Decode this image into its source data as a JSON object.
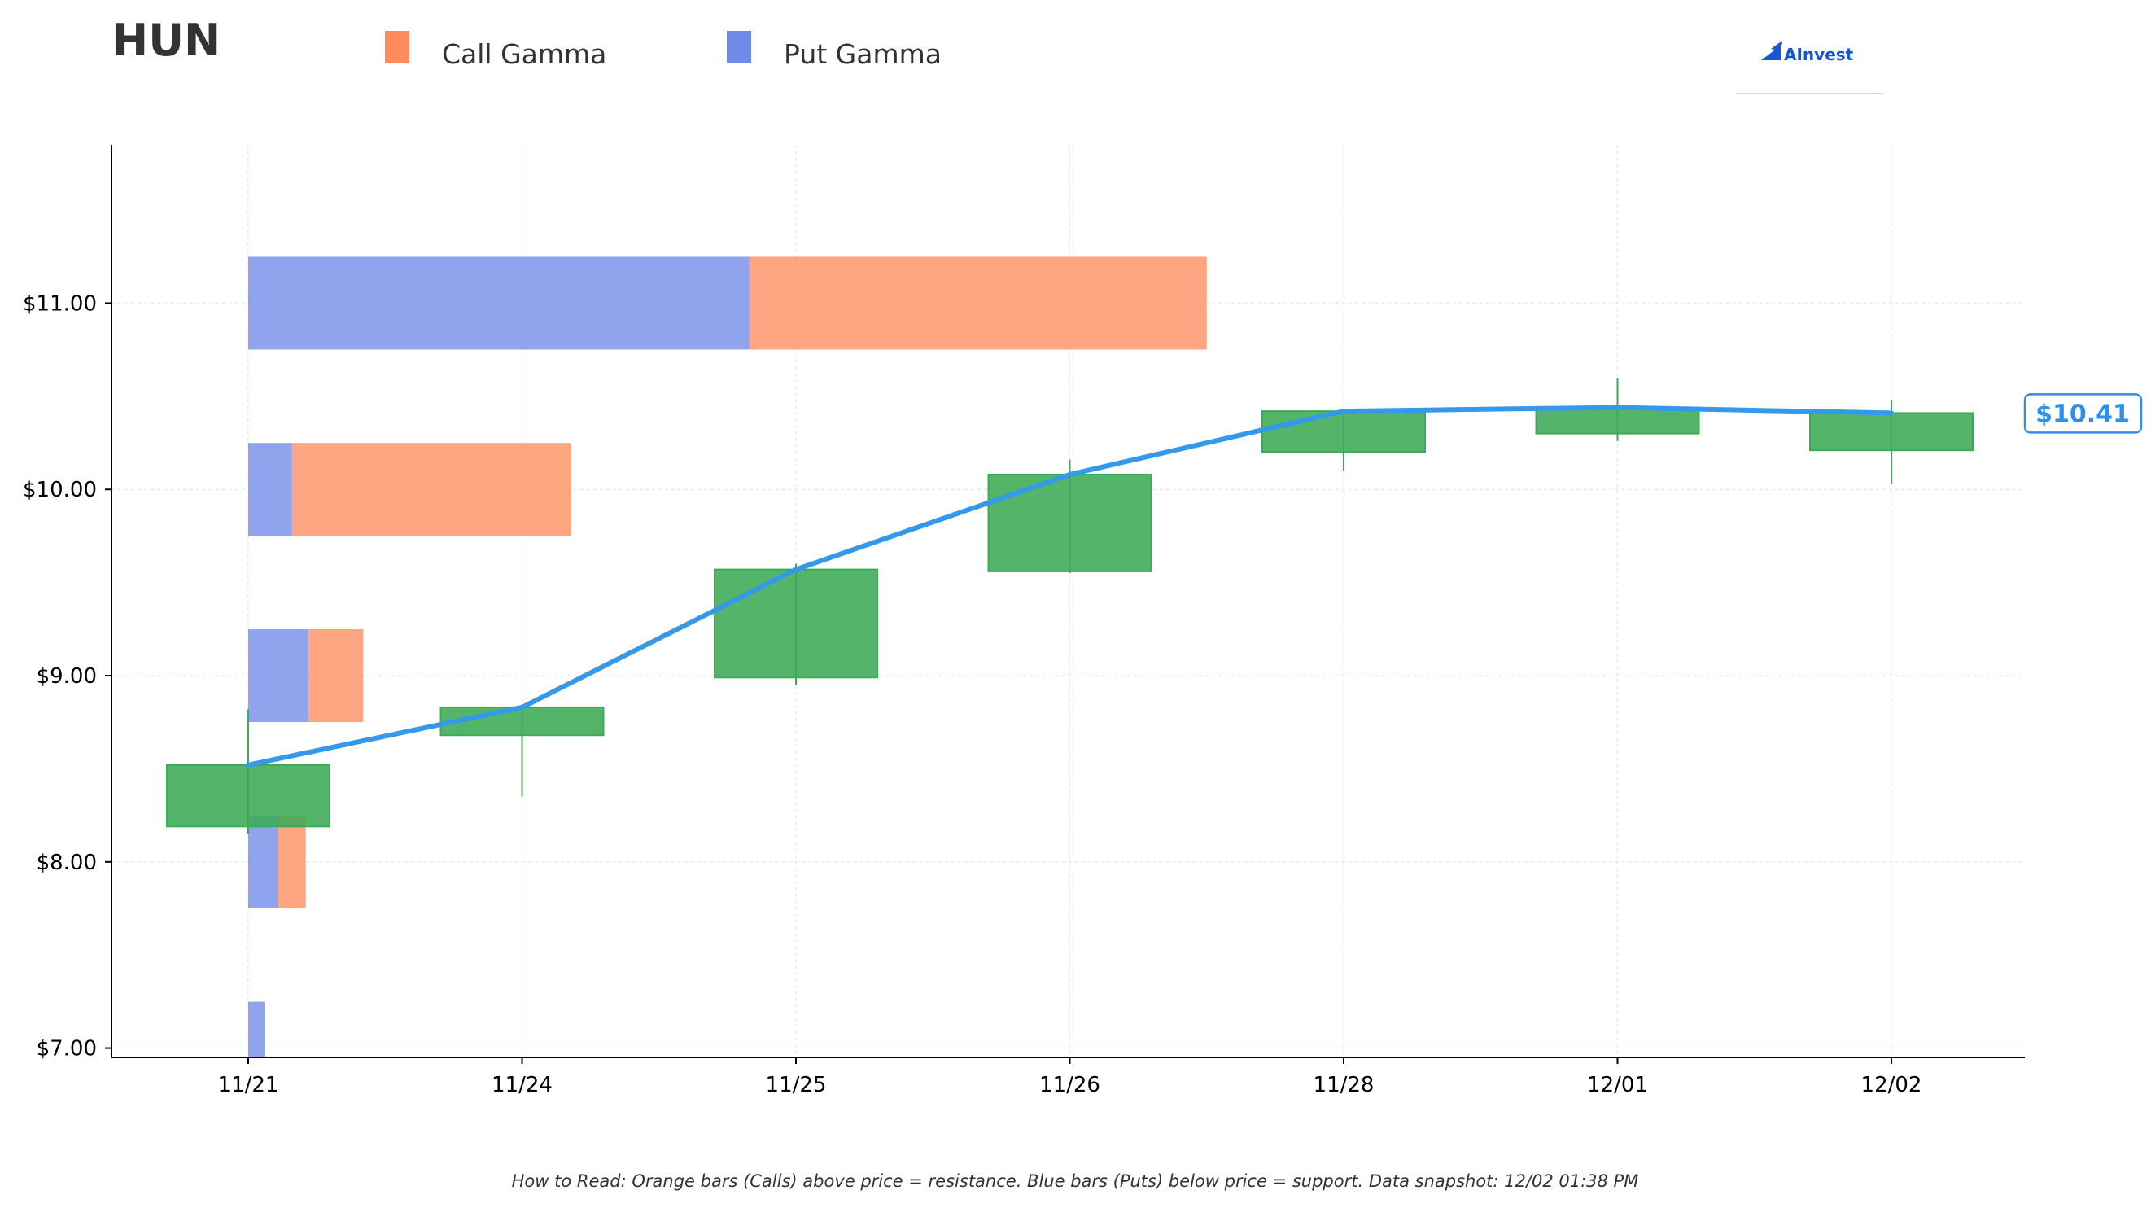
{
  "header": {
    "ticker": "HUN",
    "logo_text": "AInvest"
  },
  "legend": {
    "call_label": "Call Gamma",
    "put_label": "Put Gamma"
  },
  "footnote": "How to Read: Orange bars (Calls) above price = resistance. Blue bars (Puts) below price = support. Data snapshot: 12/02 01:38 PM",
  "colors": {
    "call": "#ff8c5f",
    "put": "#6f8be8",
    "candle_up": "#3cab55",
    "price_line": "#3498eb",
    "axis": "#000000",
    "grid": "#e6e6e6"
  },
  "chart_data": {
    "type": "bar",
    "subtype": "candlestick with gamma exposure bars",
    "x_categories": [
      "11/21",
      "11/24",
      "11/25",
      "11/26",
      "11/28",
      "12/01",
      "12/02"
    ],
    "ylim": [
      6.95,
      11.85
    ],
    "y_ticks": [
      {
        "value": 7,
        "label": "$7.00"
      },
      {
        "value": 8,
        "label": "$8.00"
      },
      {
        "value": 9,
        "label": "$9.00"
      },
      {
        "value": 10,
        "label": "$10.00"
      },
      {
        "value": 11,
        "label": "$11.00"
      }
    ],
    "grid": true,
    "candles": [
      {
        "date": "11/21",
        "open": 8.19,
        "high": 8.82,
        "low": 8.15,
        "close": 8.52
      },
      {
        "date": "11/24",
        "open": 8.68,
        "high": 8.83,
        "low": 8.35,
        "close": 8.83
      },
      {
        "date": "11/25",
        "open": 8.99,
        "high": 9.6,
        "low": 8.95,
        "close": 9.57
      },
      {
        "date": "11/26",
        "open": 9.56,
        "high": 10.16,
        "low": 9.55,
        "close": 10.08
      },
      {
        "date": "11/28",
        "open": 10.2,
        "high": 10.43,
        "low": 10.1,
        "close": 10.42
      },
      {
        "date": "12/01",
        "open": 10.3,
        "high": 10.6,
        "low": 10.26,
        "close": 10.44
      },
      {
        "date": "12/02",
        "open": 10.21,
        "high": 10.48,
        "low": 10.03,
        "close": 10.41
      }
    ],
    "gamma_strikes": [
      {
        "strike": 11.0,
        "put": 1.83,
        "call": 1.67
      },
      {
        "strike": 10.0,
        "put": 0.16,
        "call": 1.02
      },
      {
        "strike": 9.0,
        "put": 0.22,
        "call": 0.2
      },
      {
        "strike": 8.0,
        "put": 0.11,
        "call": 0.1
      },
      {
        "strike": 7.0,
        "put": 0.06,
        "call": 0
      }
    ],
    "current_price": 10.41,
    "current_price_label": "$10.41"
  }
}
